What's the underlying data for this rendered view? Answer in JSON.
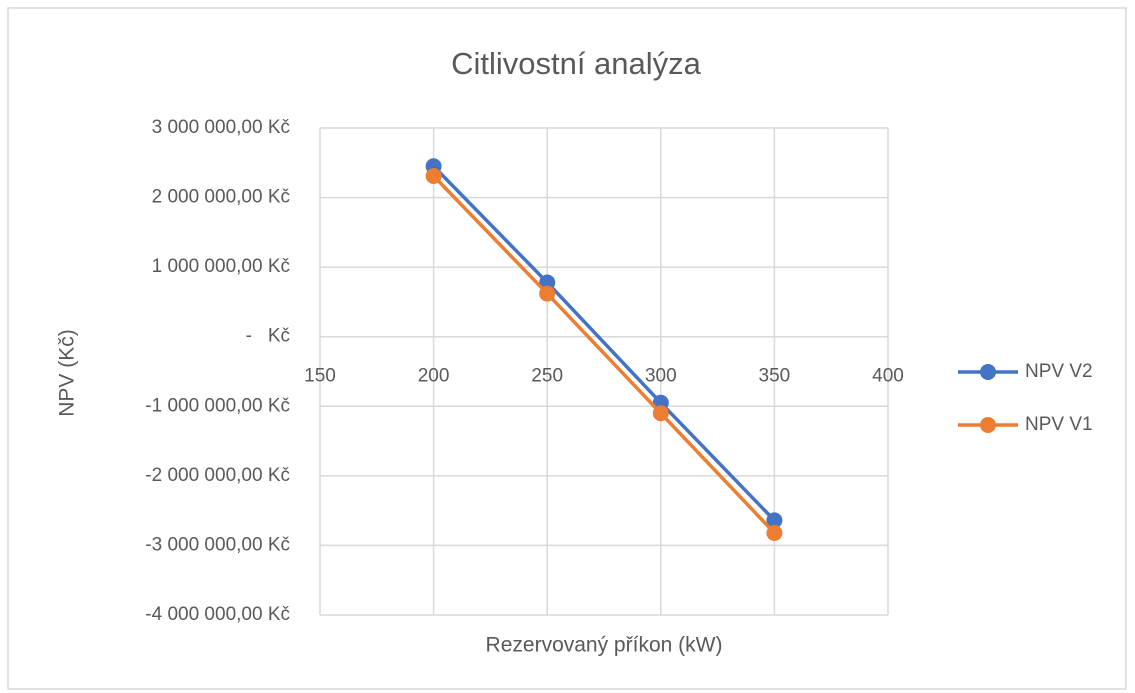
{
  "chart_data": {
    "type": "line",
    "title": "Citlivostní analýza",
    "x_label": "Rezervovaný příkon (kW)",
    "y_label": "NPV (Kč)",
    "x": [
      200,
      250,
      300,
      350
    ],
    "series": [
      {
        "name": "NPV V2",
        "color": "#4472c4",
        "values": [
          2450000,
          780000,
          -950000,
          -2640000
        ]
      },
      {
        "name": "NPV V1",
        "color": "#ed7d31",
        "values": [
          2310000,
          620000,
          -1100000,
          -2820000
        ]
      }
    ],
    "xlim": [
      150,
      400
    ],
    "xticks": [
      150,
      200,
      250,
      300,
      350,
      400
    ],
    "ylim": [
      -4000000,
      3000000
    ],
    "yticks": [
      {
        "value": -4000000,
        "label": "-4 000 000,00 Kč"
      },
      {
        "value": -3000000,
        "label": "-3 000 000,00 Kč"
      },
      {
        "value": -2000000,
        "label": "-2 000 000,00 Kč"
      },
      {
        "value": -1000000,
        "label": "-1 000 000,00 Kč"
      },
      {
        "value": 0,
        "label": "-   Kč"
      },
      {
        "value": 1000000,
        "label": "1 000 000,00 Kč"
      },
      {
        "value": 2000000,
        "label": "2 000 000,00 Kč"
      },
      {
        "value": 3000000,
        "label": "3 000 000,00 Kč"
      }
    ],
    "grid": true,
    "legend": "right"
  }
}
